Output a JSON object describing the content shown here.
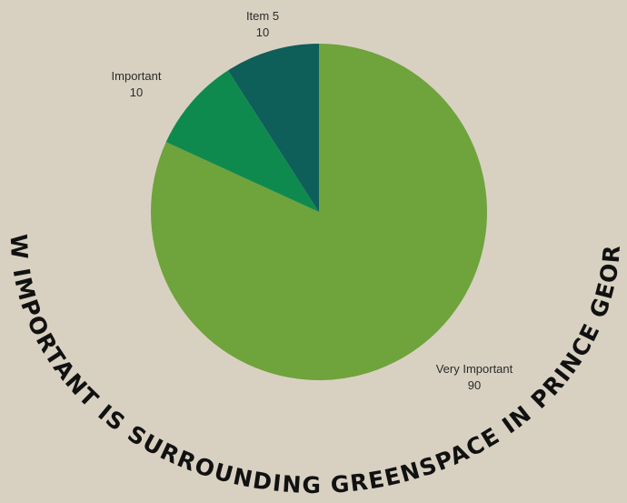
{
  "chart_data": {
    "type": "pie",
    "title": "HOW IMPORTANT IS SURROUNDING GREENSPACE IN PRINCE GEORGE?",
    "slices": [
      {
        "label": "Very Important",
        "value": 90,
        "color": "#6fa33c"
      },
      {
        "label": "Important",
        "value": 10,
        "color": "#0f8a4e"
      },
      {
        "label": "Item 5",
        "value": 10,
        "color": "#0e5e5a"
      }
    ],
    "start": "top",
    "direction": "clockwise",
    "legend": "none",
    "data_labels": "outside"
  },
  "colors": {
    "background": "#d8d1c2",
    "title_text": "#111111",
    "label_text": "#2b2b2b"
  }
}
